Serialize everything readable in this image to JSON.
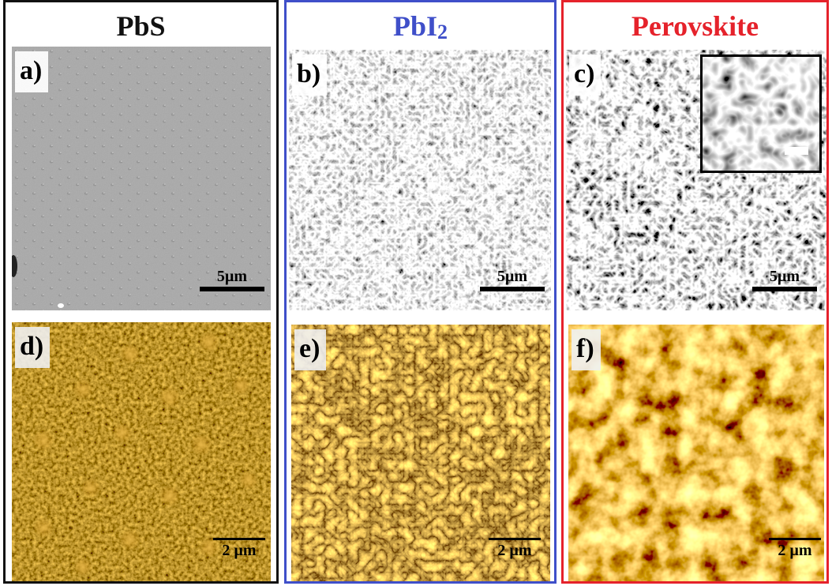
{
  "columns": [
    {
      "title": "PbS",
      "color": "#111111"
    },
    {
      "title_main": "PbI",
      "title_sub": "2",
      "color": "#3f4fc9"
    },
    {
      "title": "Perovskite",
      "color": "#e5222b"
    }
  ],
  "panels": {
    "a": {
      "label": "a)",
      "scale": "5µm"
    },
    "b": {
      "label": "b)",
      "scale": "5µm"
    },
    "c": {
      "label": "c)",
      "scale": "5µm"
    },
    "d": {
      "label": "d)",
      "scale": "2 µm"
    },
    "e": {
      "label": "e)",
      "scale": "2 µm"
    },
    "f": {
      "label": "f)",
      "scale": "2 µm"
    }
  }
}
